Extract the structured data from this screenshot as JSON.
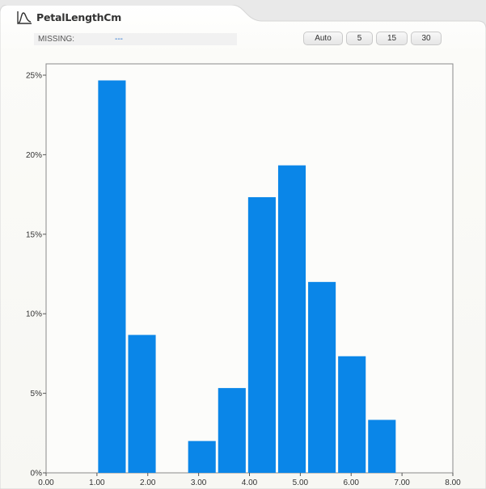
{
  "title": "PetalLengthCm",
  "missing": {
    "label": "MISSING:",
    "value": "---"
  },
  "bin_buttons": [
    "Auto",
    "5",
    "15",
    "30"
  ],
  "colors": {
    "bar": "#0a86e8",
    "panel": "#fbfbf8",
    "background": "#e9e9e9"
  },
  "icons": {
    "title": "distribution-curve-icon"
  },
  "chart_data": {
    "type": "bar",
    "title": "",
    "xlabel": "",
    "ylabel": "",
    "xlim": [
      0,
      8
    ],
    "ylim": [
      0,
      25
    ],
    "bin_width": 0.59,
    "bins": [
      {
        "start": 1.0,
        "value": 24.67
      },
      {
        "start": 1.59,
        "value": 8.67
      },
      {
        "start": 2.77,
        "value": 2.0
      },
      {
        "start": 3.36,
        "value": 5.33
      },
      {
        "start": 3.95,
        "value": 17.33
      },
      {
        "start": 4.54,
        "value": 19.33
      },
      {
        "start": 5.13,
        "value": 12.0
      },
      {
        "start": 5.72,
        "value": 7.33
      },
      {
        "start": 6.31,
        "value": 3.33
      }
    ],
    "x_ticks": [
      "0.00",
      "1.00",
      "2.00",
      "3.00",
      "4.00",
      "5.00",
      "6.00",
      "7.00",
      "8.00"
    ],
    "x_tick_values": [
      0,
      1,
      2,
      3,
      4,
      5,
      6,
      7,
      8
    ],
    "y_ticks": [
      "0%",
      "5%",
      "10%",
      "15%",
      "20%",
      "25%"
    ],
    "y_tick_values": [
      0,
      5,
      10,
      15,
      20,
      25
    ],
    "grid": false
  }
}
